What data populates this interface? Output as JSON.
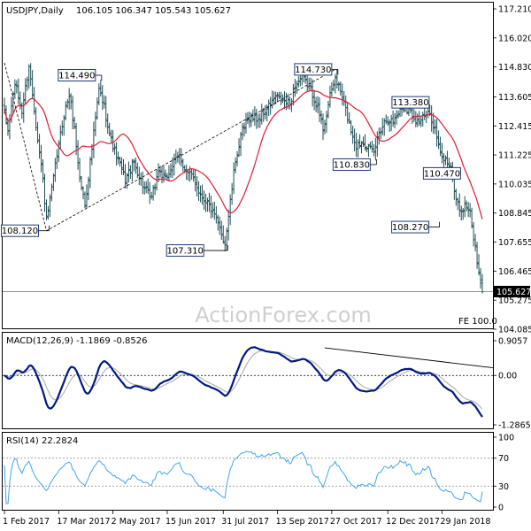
{
  "chart_data": [
    {
      "type": "candlestick",
      "title": "USDJPY,Daily",
      "ohlc": "106.105 106.347 105.543 105.627",
      "current_price": "105.627",
      "watermark": "ActionForex.com",
      "note": "FE 100.0",
      "ylim": [
        104.085,
        117.21
      ],
      "y_ticks": [
        "117.210",
        "116.020",
        "114.830",
        "113.605",
        "112.415",
        "111.225",
        "110.035",
        "108.845",
        "107.655",
        "106.465",
        "105.275",
        "104.085"
      ],
      "x_ticks": [
        "1 Feb 2017",
        "17 Mar 2017",
        "2 May 2017",
        "15 Jun 2017",
        "31 Jul 2017",
        "13 Sep 2017",
        "27 Oct 2017",
        "12 Dec 2017",
        "29 Jan 2018"
      ],
      "annotations": [
        {
          "label": "114.490",
          "index": 54
        },
        {
          "label": "114.730",
          "index": 189
        },
        {
          "label": "113.380",
          "index": 232
        },
        {
          "label": "108.120",
          "index": 24
        },
        {
          "label": "107.310",
          "index": 126
        },
        {
          "label": "110.830",
          "index": 211
        },
        {
          "label": "110.470",
          "index": 255
        },
        {
          "label": "108.270",
          "index": 247
        }
      ],
      "trendline": [
        {
          "index": 0,
          "value": 115.0
        },
        {
          "index": 24,
          "value": 108.12
        },
        {
          "index": 189,
          "value": 114.73
        }
      ],
      "price_waypoints": [
        {
          "i": 0,
          "p": 112.9
        },
        {
          "i": 2,
          "p": 112.2
        },
        {
          "i": 6,
          "p": 114.2
        },
        {
          "i": 10,
          "p": 113.0
        },
        {
          "i": 14,
          "p": 114.9
        },
        {
          "i": 18,
          "p": 112.5
        },
        {
          "i": 22,
          "p": 110.2
        },
        {
          "i": 24,
          "p": 108.5
        },
        {
          "i": 27,
          "p": 109.8
        },
        {
          "i": 30,
          "p": 111.2
        },
        {
          "i": 34,
          "p": 112.9
        },
        {
          "i": 37,
          "p": 113.7
        },
        {
          "i": 40,
          "p": 112.3
        },
        {
          "i": 43,
          "p": 110.3
        },
        {
          "i": 46,
          "p": 109.2
        },
        {
          "i": 50,
          "p": 111.5
        },
        {
          "i": 54,
          "p": 113.9
        },
        {
          "i": 57,
          "p": 113.2
        },
        {
          "i": 61,
          "p": 111.8
        },
        {
          "i": 65,
          "p": 111.0
        },
        {
          "i": 69,
          "p": 110.2
        },
        {
          "i": 74,
          "p": 110.9
        },
        {
          "i": 79,
          "p": 110.0
        },
        {
          "i": 84,
          "p": 109.4
        },
        {
          "i": 88,
          "p": 110.6
        },
        {
          "i": 92,
          "p": 110.2
        },
        {
          "i": 96,
          "p": 110.8
        },
        {
          "i": 100,
          "p": 111.2
        },
        {
          "i": 104,
          "p": 110.5
        },
        {
          "i": 108,
          "p": 110.3
        },
        {
          "i": 112,
          "p": 109.6
        },
        {
          "i": 116,
          "p": 109.3
        },
        {
          "i": 120,
          "p": 108.7
        },
        {
          "i": 124,
          "p": 108.0
        },
        {
          "i": 126,
          "p": 107.6
        },
        {
          "i": 129,
          "p": 109.3
        },
        {
          "i": 132,
          "p": 111.0
        },
        {
          "i": 136,
          "p": 112.2
        },
        {
          "i": 140,
          "p": 112.8
        },
        {
          "i": 145,
          "p": 112.7
        },
        {
          "i": 150,
          "p": 113.1
        },
        {
          "i": 155,
          "p": 113.6
        },
        {
          "i": 160,
          "p": 113.4
        },
        {
          "i": 163,
          "p": 113.3
        },
        {
          "i": 166,
          "p": 114.1
        },
        {
          "i": 170,
          "p": 114.4
        },
        {
          "i": 174,
          "p": 114.0
        },
        {
          "i": 178,
          "p": 113.4
        },
        {
          "i": 182,
          "p": 112.3
        },
        {
          "i": 186,
          "p": 113.6
        },
        {
          "i": 189,
          "p": 114.4
        },
        {
          "i": 193,
          "p": 113.6
        },
        {
          "i": 197,
          "p": 112.5
        },
        {
          "i": 201,
          "p": 111.6
        },
        {
          "i": 205,
          "p": 111.8
        },
        {
          "i": 209,
          "p": 111.4
        },
        {
          "i": 211,
          "p": 111.3
        },
        {
          "i": 214,
          "p": 112.2
        },
        {
          "i": 218,
          "p": 112.7
        },
        {
          "i": 222,
          "p": 112.6
        },
        {
          "i": 226,
          "p": 113.1
        },
        {
          "i": 229,
          "p": 113.2
        },
        {
          "i": 232,
          "p": 113.0
        },
        {
          "i": 236,
          "p": 112.6
        },
        {
          "i": 240,
          "p": 112.8
        },
        {
          "i": 243,
          "p": 112.9
        },
        {
          "i": 246,
          "p": 112.3
        },
        {
          "i": 249,
          "p": 111.2
        },
        {
          "i": 252,
          "p": 111.0
        },
        {
          "i": 255,
          "p": 110.8
        },
        {
          "i": 258,
          "p": 109.4
        },
        {
          "i": 261,
          "p": 108.9
        },
        {
          "i": 264,
          "p": 109.2
        },
        {
          "i": 266,
          "p": 108.8
        },
        {
          "i": 268,
          "p": 107.9
        },
        {
          "i": 270,
          "p": 106.8
        },
        {
          "i": 272,
          "p": 105.9
        },
        {
          "i": 273,
          "p": 105.63
        }
      ],
      "ma_color": "#dd1c33",
      "candle_color": "#1f4e56"
    },
    {
      "type": "line",
      "title": "MACD(12,26,9) -1.1869 -0.8526",
      "ylim": [
        -1.2865,
        0.9057
      ],
      "y_ticks": [
        "0.9057",
        "0.00",
        "-1.2865"
      ],
      "series": [
        {
          "name": "MACD",
          "color": "#001a80"
        },
        {
          "name": "Signal",
          "color": "#a8a8a8"
        }
      ],
      "trendline": [
        {
          "index": 183,
          "value": 0.72
        },
        {
          "index": 273,
          "value": 0.2
        }
      ]
    },
    {
      "type": "line",
      "title": "RSI(14) 22.2824",
      "ylim": [
        0,
        100
      ],
      "y_ticks": [
        "100",
        "70",
        "30",
        "0"
      ],
      "levels": [
        70,
        30
      ],
      "series": [
        {
          "name": "RSI",
          "color": "#41a6e6"
        }
      ]
    }
  ]
}
